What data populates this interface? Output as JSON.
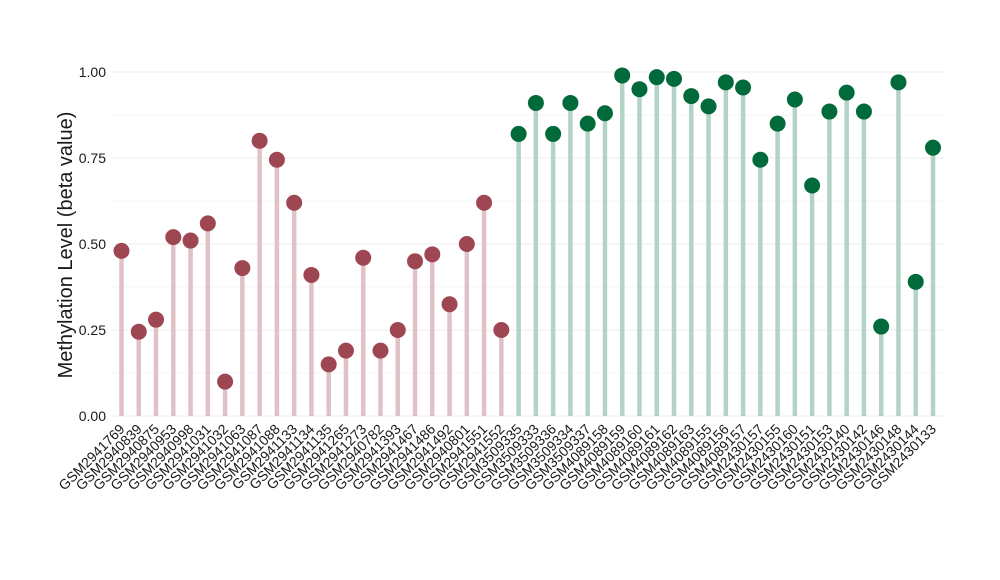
{
  "chart_data": {
    "type": "lollipop",
    "ylabel": "Methylation Level (beta value)",
    "xlabel": "",
    "ylim": [
      0,
      1.0
    ],
    "yticks": [
      "0.00",
      "0.25",
      "0.50",
      "0.75",
      "1.00"
    ],
    "ytick_values": [
      0,
      0.25,
      0.5,
      0.75,
      1.0
    ],
    "grid": true,
    "legend": "none",
    "colors": {
      "group1_point": "#9e4652",
      "group1_stem": "#dfc1c6",
      "group2_point": "#016a3a",
      "group2_stem": "#b3d3c6",
      "grid": "#ececec"
    },
    "categories": [
      "GSM2941769",
      "GSM2940839",
      "GSM2940875",
      "GSM2940953",
      "GSM2940998",
      "GSM2941031",
      "GSM2941032",
      "GSM2941063",
      "GSM2941087",
      "GSM2941088",
      "GSM2941133",
      "GSM2941134",
      "GSM2941135",
      "GSM2941265",
      "GSM2941273",
      "GSM2940782",
      "GSM2941393",
      "GSM2941467",
      "GSM2941486",
      "GSM2941492",
      "GSM2940801",
      "GSM2941551",
      "GSM2941552",
      "GSM3509335",
      "GSM3509333",
      "GSM3509336",
      "GSM3509334",
      "GSM3509337",
      "GSM4089158",
      "GSM4089159",
      "GSM4089160",
      "GSM4089161",
      "GSM4089162",
      "GSM4089163",
      "GSM4089155",
      "GSM4089156",
      "GSM4089157",
      "GSM2430157",
      "GSM2430155",
      "GSM2430160",
      "GSM2430151",
      "GSM2430153",
      "GSM2430140",
      "GSM2430142",
      "GSM2430146",
      "GSM2430148",
      "GSM2430144",
      "GSM2430133"
    ],
    "values": [
      0.48,
      0.245,
      0.28,
      0.52,
      0.51,
      0.56,
      0.1,
      0.43,
      0.8,
      0.745,
      0.62,
      0.41,
      0.15,
      0.19,
      0.46,
      0.19,
      0.25,
      0.45,
      0.47,
      0.325,
      0.5,
      0.62,
      0.25,
      0.82,
      0.91,
      0.82,
      0.91,
      0.85,
      0.88,
      0.99,
      0.95,
      0.985,
      0.98,
      0.93,
      0.9,
      0.97,
      0.955,
      0.745,
      0.85,
      0.92,
      0.67,
      0.885,
      0.94,
      0.885,
      0.26,
      0.97,
      0.39,
      0.78
    ],
    "group": [
      1,
      1,
      1,
      1,
      1,
      1,
      1,
      1,
      1,
      1,
      1,
      1,
      1,
      1,
      1,
      1,
      1,
      1,
      1,
      1,
      1,
      1,
      1,
      2,
      2,
      2,
      2,
      2,
      2,
      2,
      2,
      2,
      2,
      2,
      2,
      2,
      2,
      2,
      2,
      2,
      2,
      2,
      2,
      2,
      2,
      2,
      2,
      2
    ]
  }
}
